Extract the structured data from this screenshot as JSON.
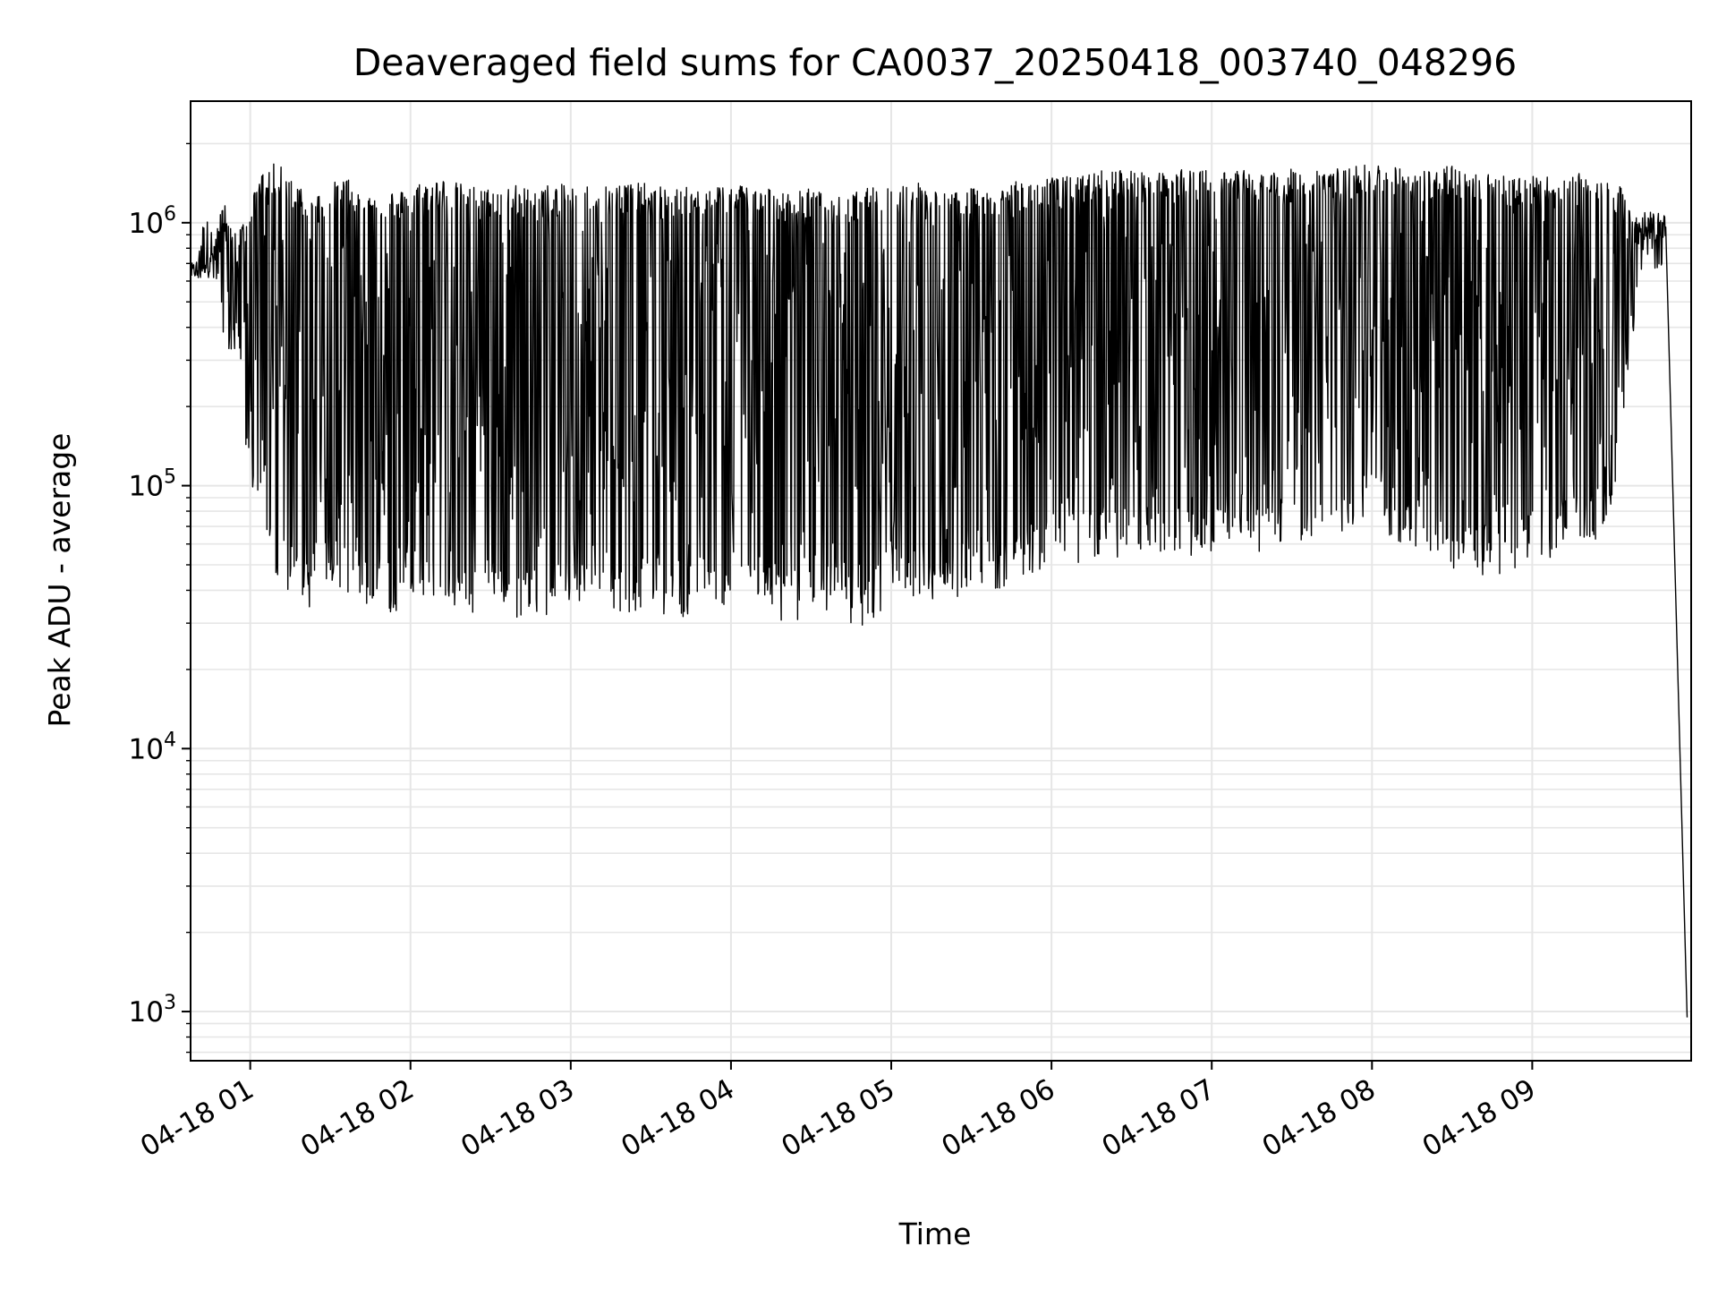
{
  "chart_data": {
    "type": "line",
    "title": "Deaveraged field sums for CA0037_20250418_003740_048296",
    "xlabel": "Time",
    "ylabel": "Peak ADU - average",
    "y_scale": "log",
    "ylim": [
      650,
      2900000
    ],
    "xlim": [
      "04-18 00:37:40",
      "04-18 09:59:30"
    ],
    "grid": true,
    "line_color": "#000000",
    "grid_color": "#e6e6e6",
    "x_ticks": [
      {
        "time": "04-18 01:00",
        "label": "04-18 01"
      },
      {
        "time": "04-18 02:00",
        "label": "04-18 02"
      },
      {
        "time": "04-18 03:00",
        "label": "04-18 03"
      },
      {
        "time": "04-18 04:00",
        "label": "04-18 04"
      },
      {
        "time": "04-18 05:00",
        "label": "04-18 05"
      },
      {
        "time": "04-18 06:00",
        "label": "04-18 06"
      },
      {
        "time": "04-18 07:00",
        "label": "04-18 07"
      },
      {
        "time": "04-18 08:00",
        "label": "04-18 08"
      },
      {
        "time": "04-18 09:00",
        "label": "04-18 09"
      }
    ],
    "y_ticks": [
      {
        "value": 1000,
        "base": "10",
        "exp": "3"
      },
      {
        "value": 10000,
        "base": "10",
        "exp": "4"
      },
      {
        "value": 100000,
        "base": "10",
        "exp": "5"
      },
      {
        "value": 1000000,
        "base": "10",
        "exp": "6"
      }
    ],
    "series": [
      {
        "values_description_x": "time",
        "x": [
          "04-18 00:38",
          "04-18 00:45",
          "04-18 00:50",
          "04-18 00:55",
          "04-18 01:00",
          "04-18 01:05",
          "04-18 01:10",
          "04-18 01:15",
          "04-18 01:20",
          "04-18 01:25",
          "04-18 01:30",
          "04-18 01:35",
          "04-18 01:40",
          "04-18 01:45",
          "04-18 01:50",
          "04-18 01:55",
          "04-18 02:00",
          "04-18 02:10",
          "04-18 02:20",
          "04-18 02:30",
          "04-18 02:40",
          "04-18 02:45",
          "04-18 02:50",
          "04-18 03:00",
          "04-18 03:10",
          "04-18 03:20",
          "04-18 03:30",
          "04-18 03:40",
          "04-18 03:50",
          "04-18 04:00",
          "04-18 04:10",
          "04-18 04:20",
          "04-18 04:30",
          "04-18 04:40",
          "04-18 04:50",
          "04-18 05:00",
          "04-18 05:10",
          "04-18 05:20",
          "04-18 05:30",
          "04-18 05:40",
          "04-18 05:50",
          "04-18 06:00",
          "04-18 06:10",
          "04-18 06:20",
          "04-18 06:30",
          "04-18 06:40",
          "04-18 06:50",
          "04-18 07:00",
          "04-18 07:10",
          "04-18 07:20",
          "04-18 07:30",
          "04-18 07:40",
          "04-18 07:50",
          "04-18 08:00",
          "04-18 08:10",
          "04-18 08:20",
          "04-18 08:30",
          "04-18 08:40",
          "04-18 08:50",
          "04-18 09:00",
          "04-18 09:10",
          "04-18 09:20",
          "04-18 09:30",
          "04-18 09:40",
          "04-18 09:50",
          "04-18 09:58"
        ],
        "upper": [
          700000,
          800000,
          1200000,
          900000,
          1200000,
          1600000,
          1700000,
          1500000,
          1400000,
          1300000,
          1400000,
          1500000,
          1400000,
          1300000,
          1400000,
          1300000,
          1400000,
          1500000,
          1400000,
          1350000,
          1400000,
          1350000,
          1400000,
          1400000,
          1400000,
          1450000,
          1400000,
          1350000,
          1400000,
          1400000,
          1450000,
          1300000,
          1350000,
          1250000,
          1350000,
          1400000,
          1450000,
          1300000,
          1350000,
          1400000,
          1450000,
          1500000,
          1500000,
          1600000,
          1600000,
          1550000,
          1600000,
          1600000,
          1600000,
          1550000,
          1600000,
          1650000,
          1600000,
          1700000,
          1650000,
          1600000,
          1650000,
          1600000,
          1550000,
          1500000,
          1500000,
          1550000,
          1500000,
          1100000,
          1100000,
          1000
        ],
        "lower": [
          600000,
          650000,
          300000,
          250000,
          100000,
          60000,
          35000,
          40000,
          30000,
          40000,
          45000,
          35000,
          40000,
          30000,
          35000,
          30000,
          40000,
          35000,
          30000,
          35000,
          30000,
          35000,
          30000,
          35000,
          40000,
          30000,
          35000,
          30000,
          35000,
          35000,
          35000,
          30000,
          30000,
          35000,
          25000,
          40000,
          35000,
          35000,
          40000,
          40000,
          45000,
          50000,
          50000,
          55000,
          50000,
          55000,
          50000,
          55000,
          60000,
          55000,
          60000,
          60000,
          65000,
          70000,
          60000,
          55000,
          45000,
          45000,
          45000,
          50000,
          55000,
          60000,
          65000,
          600000,
          700000,
          950
        ]
      }
    ]
  }
}
